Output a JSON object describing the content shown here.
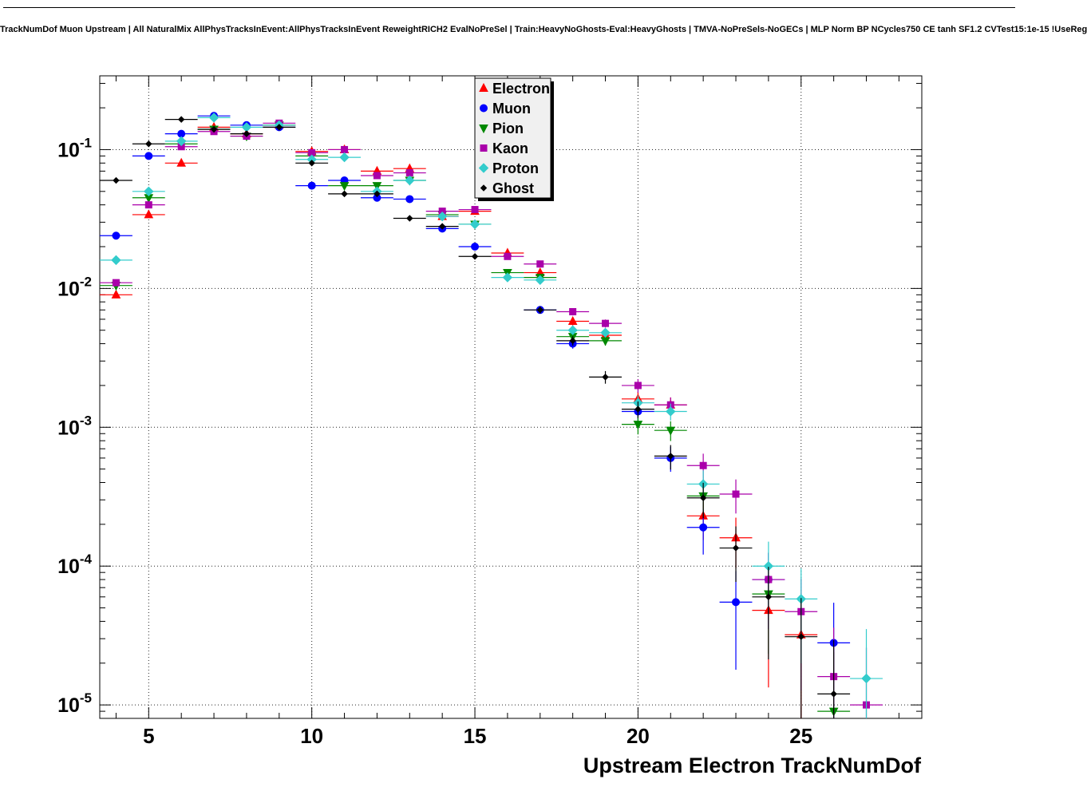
{
  "title": "TrackNumDof Muon Upstream | All NaturalMix AllPhysTracksInEvent:AllPhysTracksInEvent ReweightRICH2 EvalNoPreSel | Train:HeavyNoGhosts-Eval:HeavyGhosts | TMVA-NoPreSels-NoGECs | MLP Norm BP NCycles750 CE tanh SF1.2 CVTest15:1e-15 !UseReg",
  "chart_data": {
    "type": "scatter",
    "title": "TrackNumDof Muon Upstream | All NaturalMix AllPhysTracksInEvent:AllPhysTracksInEvent ReweightRICH2 EvalNoPreSel | Train:HeavyNoGhosts-Eval:HeavyGhosts | TMVA-NoPreSels-NoGECs | MLP Norm BP NCycles750 CE tanh SF1.2 CVTest15:1e-15 !UseReg",
    "xlabel": "Upstream Electron TrackNumDof",
    "ylabel": "",
    "x_scale": "linear",
    "y_scale": "log",
    "x_range": [
      3.5,
      28.7
    ],
    "y_range": [
      8e-06,
      0.34
    ],
    "x_major_ticks": [
      5,
      10,
      15,
      20,
      25
    ],
    "y_major_tick_exponents": [
      -1,
      -2,
      -3,
      -4,
      -5
    ],
    "grid": "dotted",
    "bin_width": 1,
    "legend_position": "top-center",
    "x": [
      4,
      5,
      6,
      7,
      8,
      9,
      10,
      11,
      12,
      13,
      14,
      15,
      16,
      17,
      18,
      19,
      20,
      21,
      22,
      23,
      24,
      25,
      26,
      27
    ],
    "series": [
      {
        "name": "Electron",
        "color": "#ff0000",
        "marker": "triangle-up",
        "values": [
          0.009,
          0.034,
          0.08,
          0.145,
          0.13,
          0.15,
          0.097,
          0.1,
          0.07,
          0.073,
          0.033,
          0.036,
          0.018,
          0.013,
          0.0058,
          0.0046,
          0.0016,
          0.00145,
          0.00023,
          0.00016,
          4.8e-05,
          3.2e-05,
          null,
          null
        ]
      },
      {
        "name": "Muon",
        "color": "#0000ff",
        "marker": "circle",
        "values": [
          0.024,
          0.09,
          0.13,
          0.175,
          0.15,
          0.145,
          0.055,
          0.06,
          0.045,
          0.044,
          0.027,
          0.02,
          null,
          0.007,
          0.004,
          null,
          0.0013,
          0.0006,
          0.00019,
          5.5e-05,
          8e-05,
          null,
          2.8e-05,
          null
        ]
      },
      {
        "name": "Pion",
        "color": "#008800",
        "marker": "triangle-down",
        "values": [
          0.0105,
          0.045,
          0.11,
          0.14,
          0.125,
          0.15,
          0.09,
          0.055,
          0.055,
          0.06,
          0.034,
          0.029,
          0.013,
          0.012,
          0.0045,
          0.0042,
          0.00105,
          0.00095,
          0.00032,
          null,
          6.3e-05,
          null,
          9e-06,
          null
        ]
      },
      {
        "name": "Kaon",
        "color": "#aa00aa",
        "marker": "square",
        "values": [
          0.011,
          0.04,
          0.105,
          0.135,
          0.125,
          0.155,
          0.095,
          0.1,
          0.065,
          0.068,
          0.036,
          0.037,
          0.017,
          0.015,
          0.0068,
          0.0056,
          0.002,
          0.00145,
          0.00053,
          0.00033,
          8e-05,
          4.7e-05,
          1.6e-05,
          1e-05
        ]
      },
      {
        "name": "Proton",
        "color": "#33cccc",
        "marker": "diamond",
        "values": [
          0.016,
          0.05,
          0.115,
          0.17,
          0.145,
          0.15,
          0.085,
          0.088,
          0.05,
          0.06,
          0.033,
          0.029,
          0.012,
          0.0115,
          0.005,
          0.0048,
          0.0015,
          0.0013,
          0.00039,
          null,
          0.0001,
          5.8e-05,
          null,
          1.55e-05
        ]
      },
      {
        "name": "Ghost",
        "color": "#000000",
        "marker": "small-diamond",
        "values": [
          0.06,
          0.11,
          0.165,
          0.14,
          0.13,
          0.145,
          0.08,
          0.048,
          0.048,
          0.032,
          0.028,
          0.017,
          null,
          0.007,
          0.0042,
          0.0023,
          0.00135,
          0.00062,
          0.00031,
          0.000135,
          6e-05,
          3.1e-05,
          1.2e-05,
          null
        ]
      }
    ]
  }
}
